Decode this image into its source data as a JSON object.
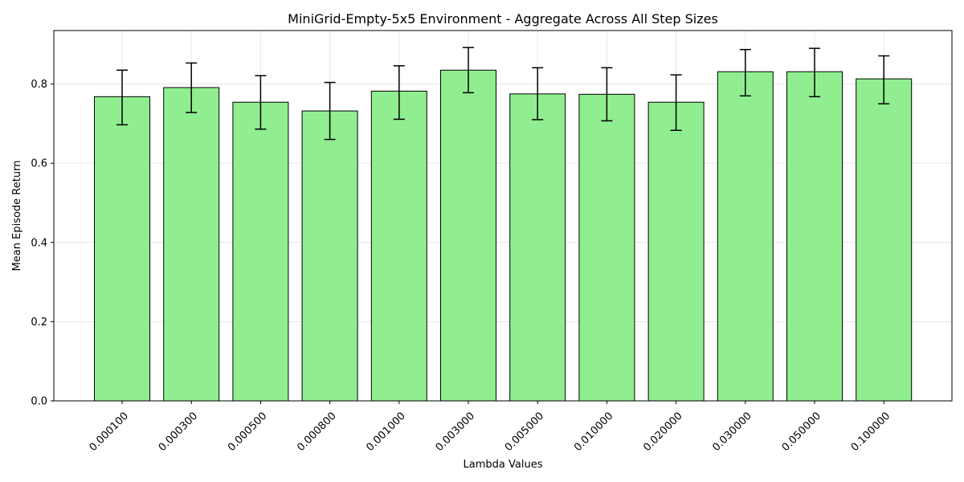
{
  "chart_data": {
    "type": "bar",
    "title": "MiniGrid-Empty-5x5 Environment - Aggregate Across All Step Sizes",
    "xlabel": "Lambda Values",
    "ylabel": "Mean Episode Return",
    "categories": [
      "0.000100",
      "0.000300",
      "0.000500",
      "0.000800",
      "0.001000",
      "0.003000",
      "0.005000",
      "0.010000",
      "0.020000",
      "0.030000",
      "0.050000",
      "0.100000"
    ],
    "values": [
      0.768,
      0.791,
      0.754,
      0.732,
      0.782,
      0.835,
      0.775,
      0.774,
      0.754,
      0.831,
      0.831,
      0.813
    ],
    "error_low": [
      0.697,
      0.728,
      0.686,
      0.66,
      0.711,
      0.778,
      0.71,
      0.707,
      0.683,
      0.77,
      0.768,
      0.75
    ],
    "error_high": [
      0.835,
      0.853,
      0.821,
      0.804,
      0.846,
      0.892,
      0.841,
      0.841,
      0.823,
      0.887,
      0.89,
      0.871
    ],
    "ylim": [
      0,
      0.935
    ],
    "yticks": [
      "0.0",
      "0.2",
      "0.4",
      "0.6",
      "0.8"
    ],
    "ytick_values": [
      0,
      0.2,
      0.4,
      0.6,
      0.8
    ],
    "grid": true,
    "bar_color": "#90ee90",
    "edge_color": "#000000",
    "grid_color": "#e6e6e6"
  }
}
